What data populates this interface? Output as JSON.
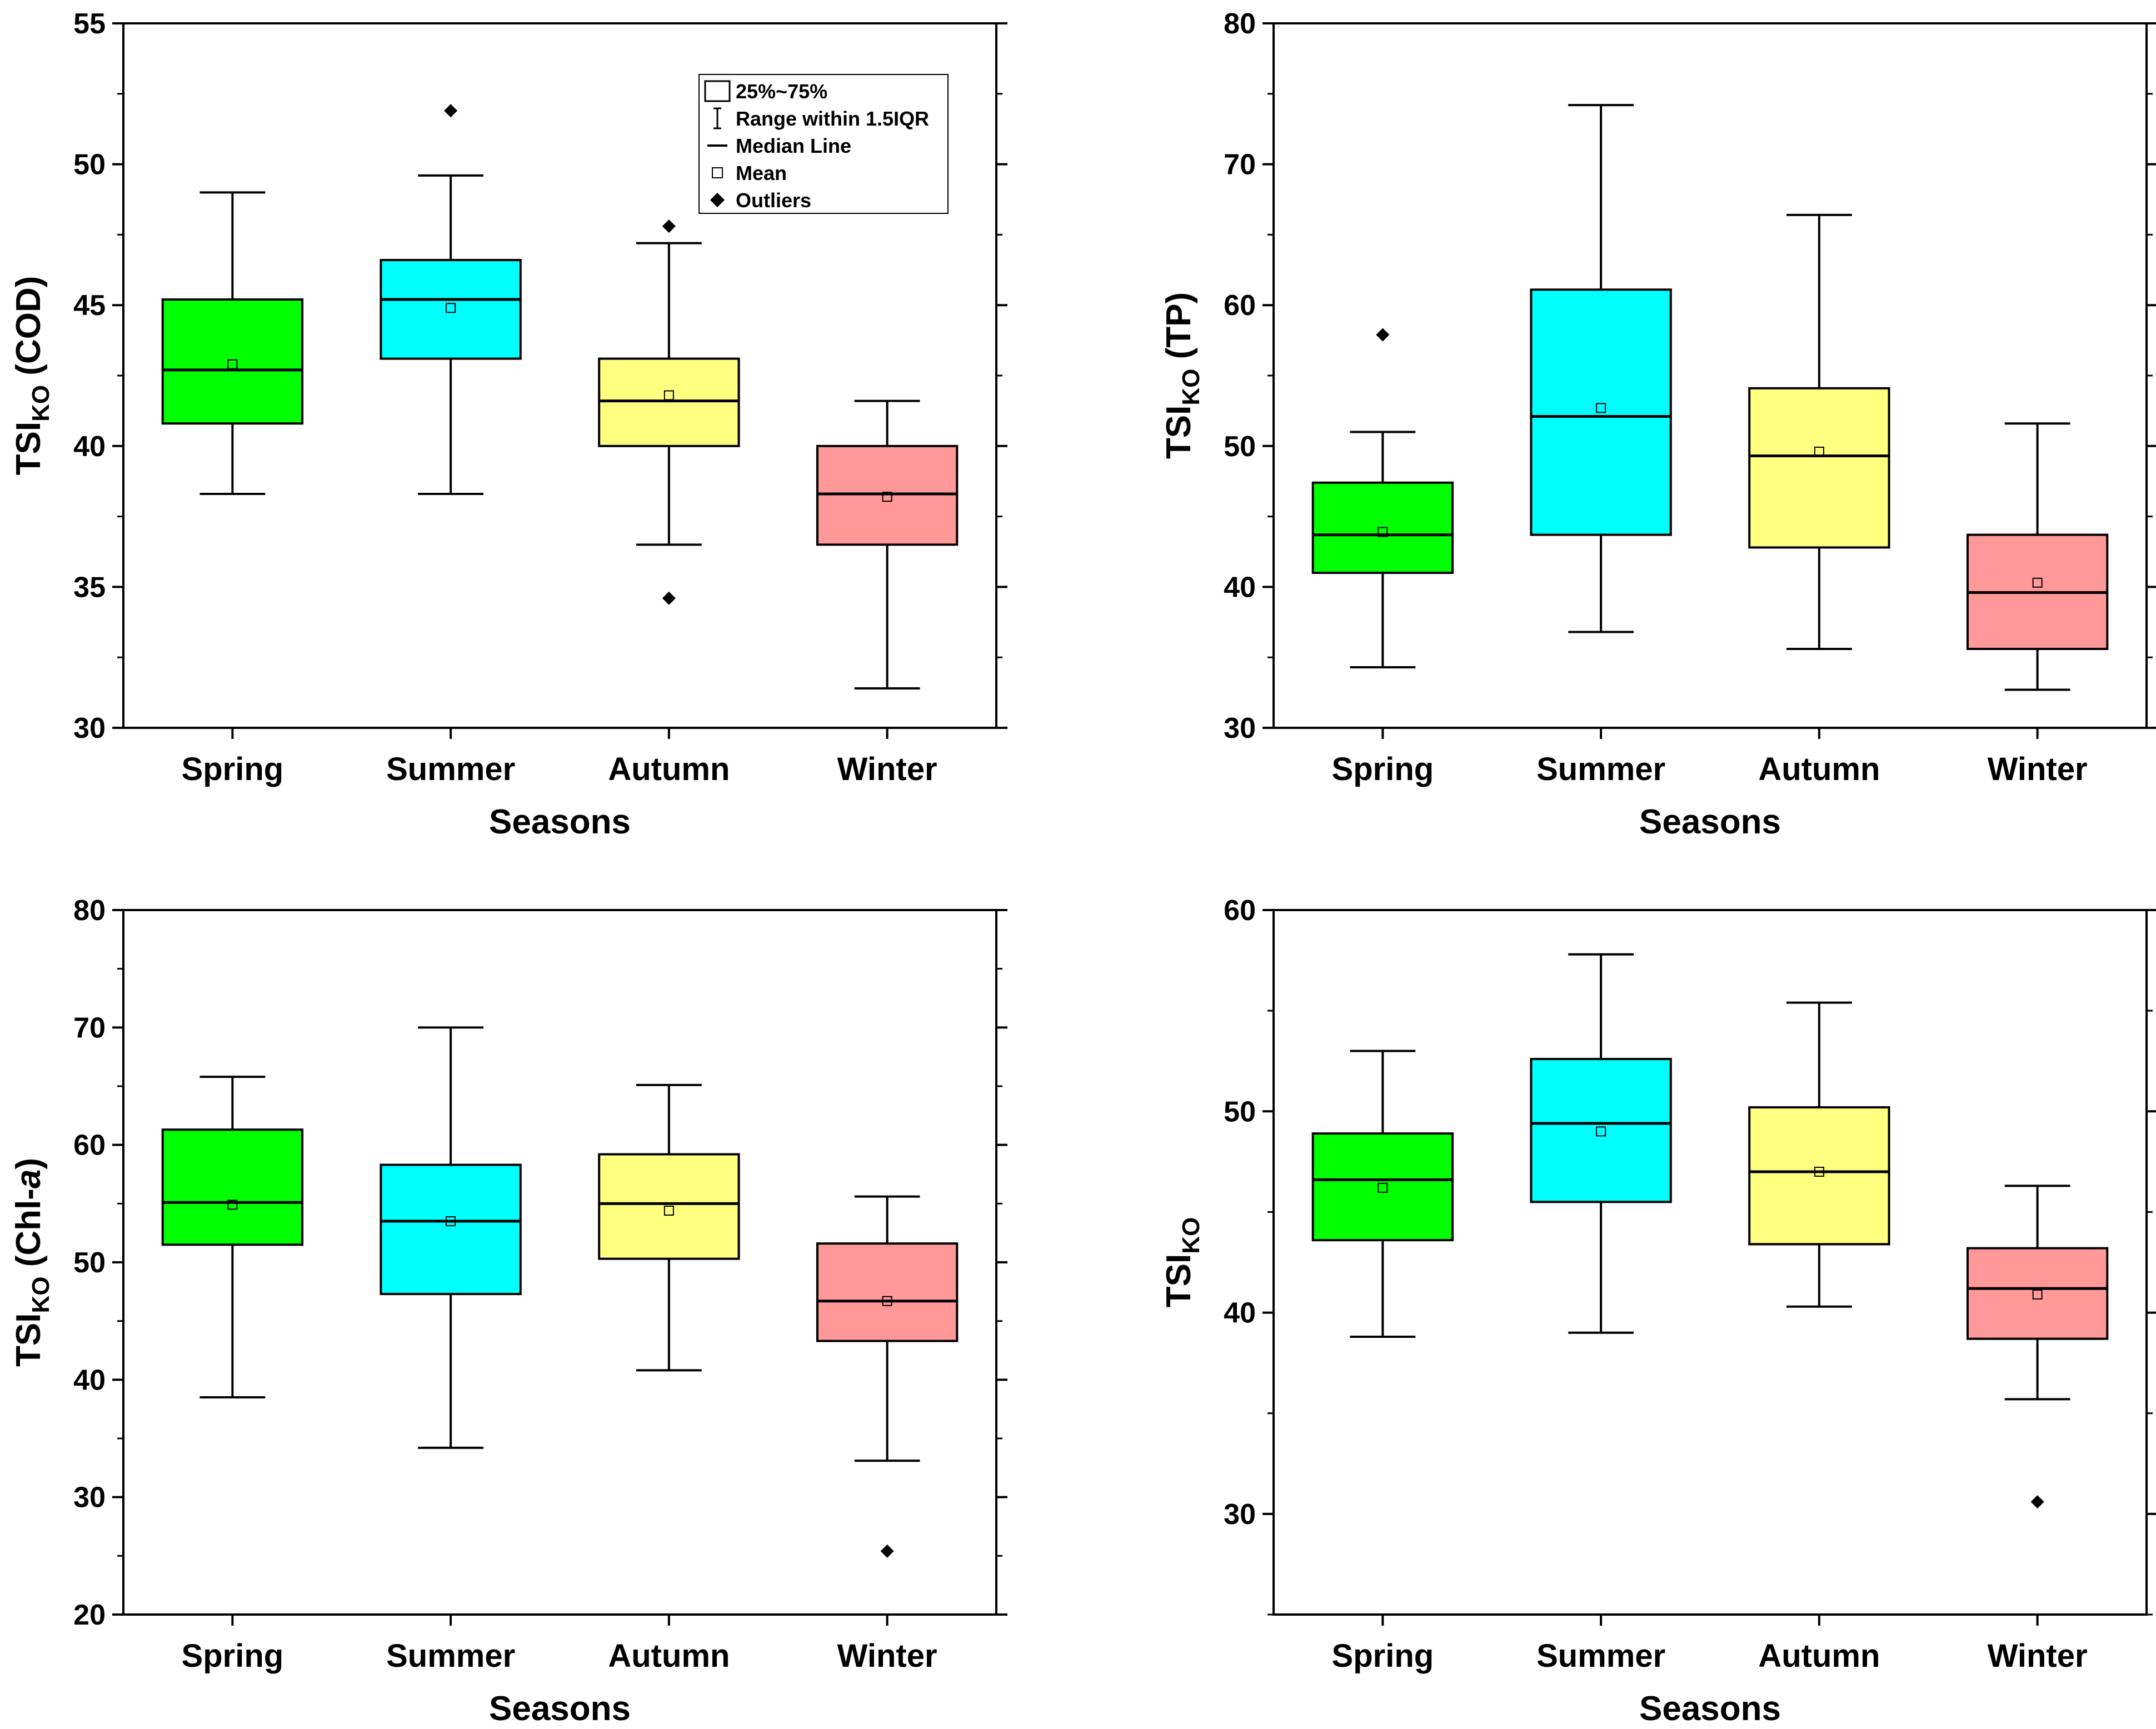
{
  "chart_data": [
    {
      "type": "box",
      "panel": "top-left",
      "categories": [
        "Spring",
        "Summer",
        "Autumn",
        "Winter"
      ],
      "colors": [
        "#00ff00",
        "#00ffff",
        "#ffff80",
        "#ff9999"
      ],
      "xlabel": "Seasons",
      "ylabel": {
        "prefix": "TSI",
        "sub": "KO",
        "suffix": " (COD)",
        "italic": ""
      },
      "ylim": [
        30,
        55
      ],
      "yticks": [
        30,
        35,
        40,
        45,
        50,
        55
      ],
      "ytick_labels": [
        "30",
        "35",
        "40",
        "45",
        "50",
        "55"
      ],
      "boxes": [
        {
          "whisker_low": 38.3,
          "q1": 40.8,
          "median": 42.7,
          "q3": 45.2,
          "whisker_high": 49.0,
          "mean": 42.9,
          "outliers": []
        },
        {
          "whisker_low": 38.3,
          "q1": 43.1,
          "median": 45.2,
          "q3": 46.6,
          "whisker_high": 49.6,
          "mean": 44.9,
          "outliers": [
            51.9
          ]
        },
        {
          "whisker_low": 36.5,
          "q1": 40.0,
          "median": 41.6,
          "q3": 43.1,
          "whisker_high": 47.2,
          "mean": 41.8,
          "outliers": [
            47.8,
            34.6
          ]
        },
        {
          "whisker_low": 31.4,
          "q1": 36.5,
          "median": 38.3,
          "q3": 40.0,
          "whisker_high": 41.6,
          "mean": 38.2,
          "outliers": []
        }
      ],
      "legend": {
        "location": "top-right",
        "items": [
          "25%~75%",
          "Range within 1.5IQR",
          "Median Line",
          "Mean",
          "Outliers"
        ]
      }
    },
    {
      "type": "box",
      "panel": "top-right",
      "categories": [
        "Spring",
        "Summer",
        "Autumn",
        "Winter"
      ],
      "colors": [
        "#00ff00",
        "#00ffff",
        "#ffff80",
        "#ff9999"
      ],
      "xlabel": "Seasons",
      "ylabel": {
        "prefix": "TSI",
        "sub": "KO",
        "suffix": " (TP)",
        "italic": ""
      },
      "ylim": [
        30,
        80
      ],
      "yticks": [
        30,
        40,
        50,
        60,
        70,
        80
      ],
      "ytick_labels": [
        "30",
        "40",
        "50",
        "60",
        "70",
        "80"
      ],
      "boxes": [
        {
          "whisker_low": 34.3,
          "q1": 41.0,
          "median": 43.7,
          "q3": 47.4,
          "whisker_high": 51.0,
          "mean": 43.9,
          "outliers": [
            57.9
          ]
        },
        {
          "whisker_low": 36.8,
          "q1": 43.7,
          "median": 52.1,
          "q3": 61.1,
          "whisker_high": 74.2,
          "mean": 52.7,
          "outliers": []
        },
        {
          "whisker_low": 35.6,
          "q1": 42.8,
          "median": 49.3,
          "q3": 54.1,
          "whisker_high": 66.4,
          "mean": 49.6,
          "outliers": []
        },
        {
          "whisker_low": 32.7,
          "q1": 35.6,
          "median": 39.6,
          "q3": 43.7,
          "whisker_high": 51.6,
          "mean": 40.3,
          "outliers": []
        }
      ]
    },
    {
      "type": "box",
      "panel": "bottom-left",
      "categories": [
        "Spring",
        "Summer",
        "Autumn",
        "Winter"
      ],
      "colors": [
        "#00ff00",
        "#00ffff",
        "#ffff80",
        "#ff9999"
      ],
      "xlabel": "Seasons",
      "ylabel": {
        "prefix": "TSI",
        "sub": "KO",
        "suffix": " (Chl-",
        "italic": "a",
        "close": ")"
      },
      "ylim": [
        20,
        80
      ],
      "yticks": [
        20,
        30,
        40,
        50,
        60,
        70,
        80
      ],
      "ytick_labels": [
        "20",
        "30",
        "40",
        "50",
        "60",
        "70",
        "80"
      ],
      "boxes": [
        {
          "whisker_low": 38.5,
          "q1": 51.5,
          "median": 55.1,
          "q3": 61.3,
          "whisker_high": 65.8,
          "mean": 54.9,
          "outliers": []
        },
        {
          "whisker_low": 34.2,
          "q1": 47.3,
          "median": 53.5,
          "q3": 58.3,
          "whisker_high": 70.0,
          "mean": 53.5,
          "outliers": []
        },
        {
          "whisker_low": 40.8,
          "q1": 50.3,
          "median": 55.0,
          "q3": 59.2,
          "whisker_high": 65.1,
          "mean": 54.4,
          "outliers": []
        },
        {
          "whisker_low": 33.1,
          "q1": 43.3,
          "median": 46.7,
          "q3": 51.6,
          "whisker_high": 55.6,
          "mean": 46.7,
          "outliers": [
            25.4
          ]
        }
      ]
    },
    {
      "type": "box",
      "panel": "bottom-right",
      "categories": [
        "Spring",
        "Summer",
        "Autumn",
        "Winter"
      ],
      "colors": [
        "#00ff00",
        "#00ffff",
        "#ffff80",
        "#ff9999"
      ],
      "xlabel": "Seasons",
      "ylabel": {
        "prefix": "TSI",
        "sub": "KO",
        "suffix": "",
        "italic": ""
      },
      "ylim": [
        25,
        60
      ],
      "yticks": [
        30,
        40,
        50,
        60
      ],
      "ytick_labels": [
        "30",
        "40",
        "50",
        "60"
      ],
      "boxes": [
        {
          "whisker_low": 38.8,
          "q1": 43.6,
          "median": 46.6,
          "q3": 48.9,
          "whisker_high": 53.0,
          "mean": 46.2,
          "outliers": []
        },
        {
          "whisker_low": 39.0,
          "q1": 45.5,
          "median": 49.4,
          "q3": 52.6,
          "whisker_high": 57.8,
          "mean": 49.0,
          "outliers": []
        },
        {
          "whisker_low": 40.3,
          "q1": 43.4,
          "median": 47.0,
          "q3": 50.2,
          "whisker_high": 55.4,
          "mean": 47.0,
          "outliers": []
        },
        {
          "whisker_low": 35.7,
          "q1": 38.7,
          "median": 41.2,
          "q3": 43.2,
          "whisker_high": 46.3,
          "mean": 40.9,
          "outliers": [
            30.6
          ]
        }
      ]
    }
  ]
}
